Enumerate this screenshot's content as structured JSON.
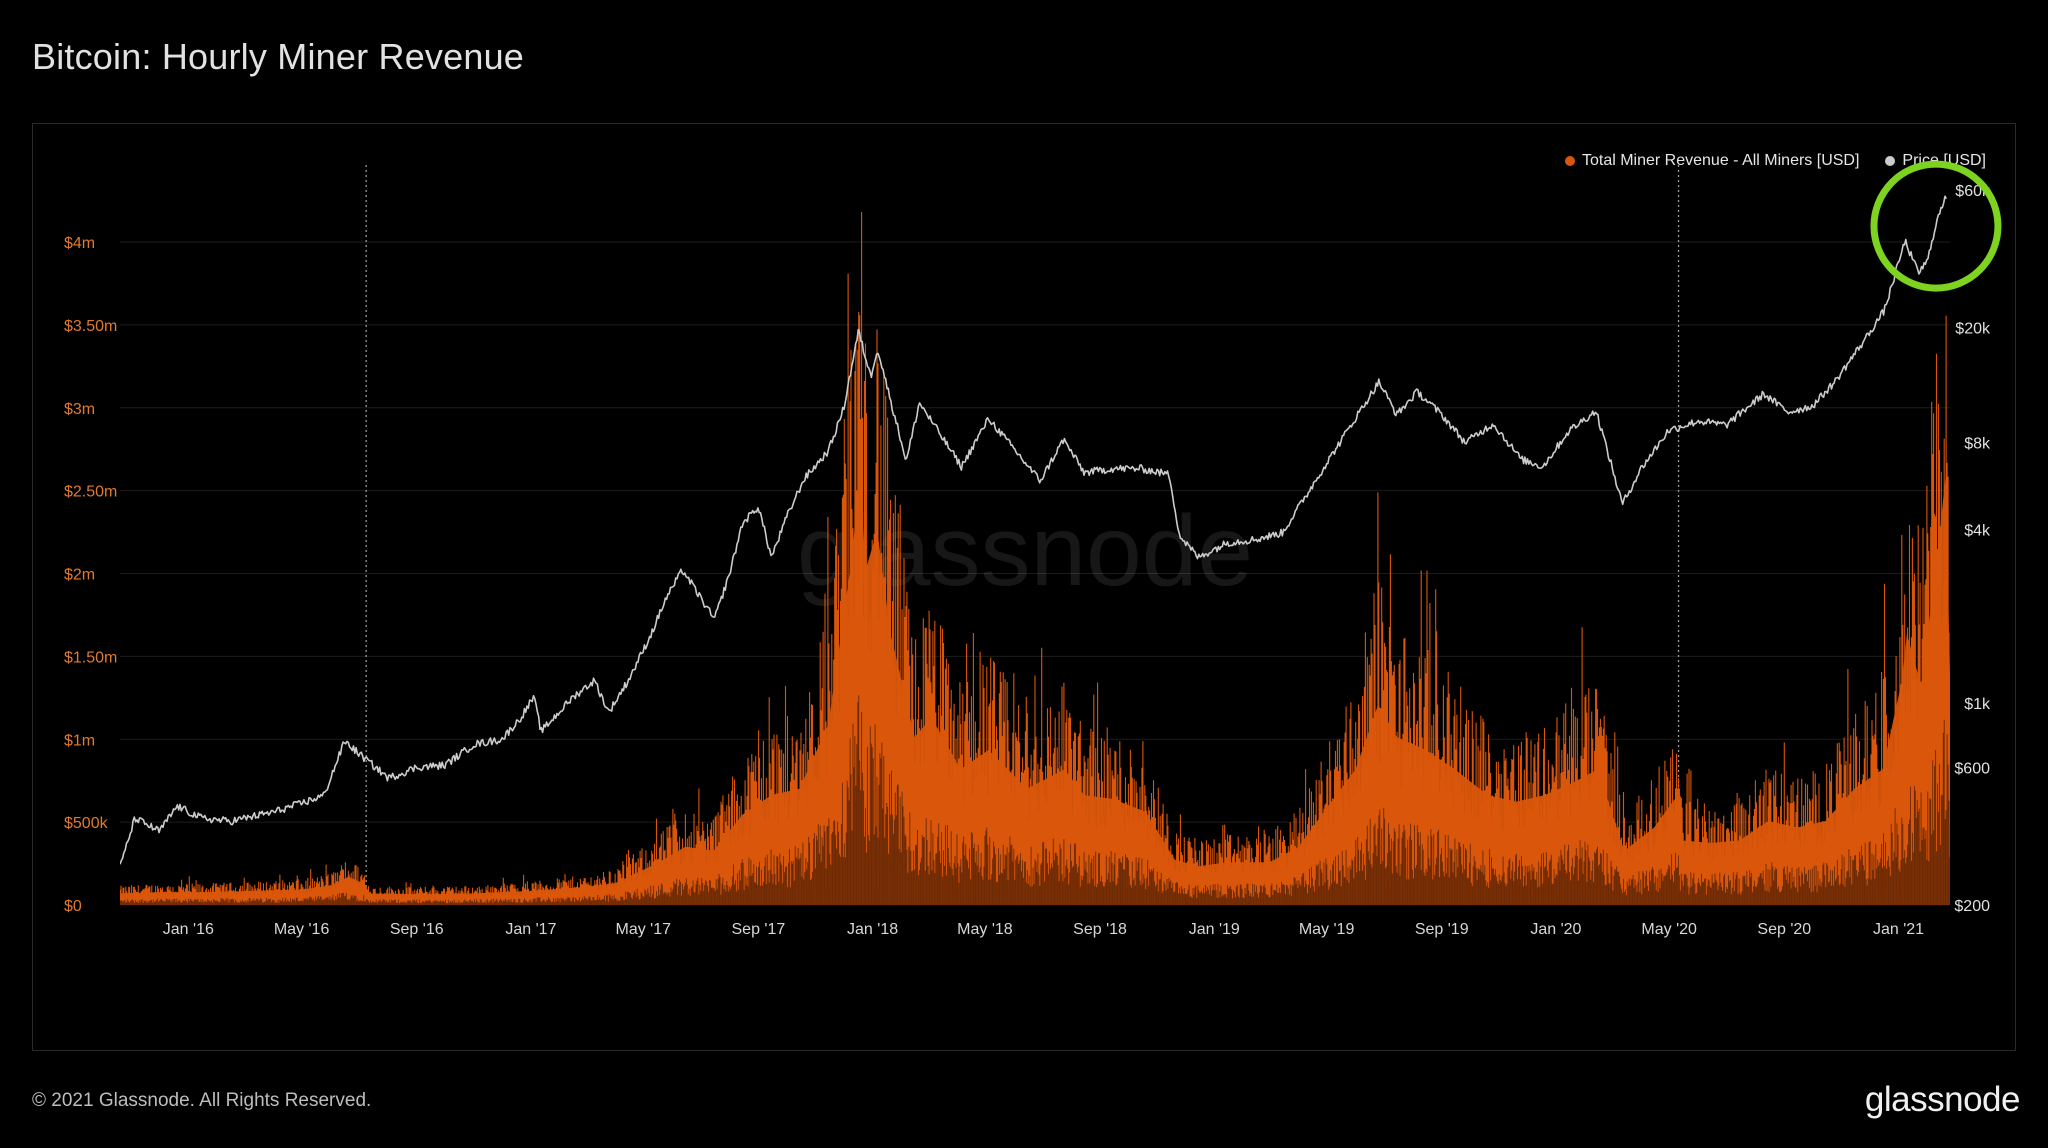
{
  "title": "Bitcoin: Hourly Miner Revenue",
  "footer": "© 2021 Glassnode. All Rights Reserved.",
  "logo": "glassnode",
  "watermark": "glassnode",
  "chart_data": {
    "type": "area",
    "title": "Bitcoin: Hourly Miner Revenue",
    "x_axis": {
      "type": "date",
      "range": [
        "2015-10-20",
        "2021-02-25"
      ],
      "tick_labels": [
        "Jan '16",
        "May '16",
        "Sep '16",
        "Jan '17",
        "May '17",
        "Sep '17",
        "Jan '18",
        "May '18",
        "Sep '18",
        "Jan '19",
        "May '19",
        "Sep '19",
        "Jan '20",
        "May '20",
        "Sep '20",
        "Jan '21"
      ],
      "tick_dates": [
        "2016-01-01",
        "2016-05-01",
        "2016-09-01",
        "2017-01-01",
        "2017-05-01",
        "2017-09-01",
        "2018-01-01",
        "2018-05-01",
        "2018-09-01",
        "2019-01-01",
        "2019-05-01",
        "2019-09-01",
        "2020-01-01",
        "2020-05-01",
        "2020-09-01",
        "2021-01-01"
      ]
    },
    "y_left": {
      "label": "",
      "scale": "linear",
      "range": [
        0,
        4500000
      ],
      "ticks": [
        0,
        500000,
        1000000,
        1500000,
        2000000,
        2500000,
        3000000,
        3500000,
        4000000
      ],
      "tick_labels": [
        "$0",
        "$500k",
        "$1m",
        "$1.50m",
        "$2m",
        "$2.50m",
        "$3m",
        "$3.50m",
        "$4m"
      ]
    },
    "y_right": {
      "label": "",
      "scale": "log",
      "range": [
        200,
        60000
      ],
      "ticks": [
        200,
        600,
        1000,
        4000,
        8000,
        20000,
        60000
      ],
      "tick_labels": [
        "$200",
        "$600",
        "$1k",
        "$4k",
        "$8k",
        "$20k",
        "$60k"
      ]
    },
    "grid": true,
    "legend_position": "top-right",
    "halving_markers": [
      "2016-07-09",
      "2020-05-11"
    ],
    "annotation": {
      "type": "circle",
      "color": "#7ed321",
      "target_date": "2021-02-10",
      "target_price": 45000
    },
    "series": [
      {
        "name": "Total Miner Revenue - All Miners [USD]",
        "color": "#d9560b",
        "axis": "left",
        "style": "area",
        "points": [
          [
            "2015-10-20",
            90000
          ],
          [
            "2015-12-01",
            100000
          ],
          [
            "2016-01-15",
            100000
          ],
          [
            "2016-03-15",
            110000
          ],
          [
            "2016-05-01",
            120000
          ],
          [
            "2016-06-01",
            150000
          ],
          [
            "2016-06-20",
            220000
          ],
          [
            "2016-07-08",
            160000
          ],
          [
            "2016-07-10",
            90000
          ],
          [
            "2016-09-01",
            85000
          ],
          [
            "2016-11-01",
            90000
          ],
          [
            "2017-01-01",
            110000
          ],
          [
            "2017-03-01",
            140000
          ],
          [
            "2017-04-01",
            170000
          ],
          [
            "2017-05-15",
            320000
          ],
          [
            "2017-06-15",
            450000
          ],
          [
            "2017-07-15",
            420000
          ],
          [
            "2017-08-15",
            700000
          ],
          [
            "2017-09-15",
            850000
          ],
          [
            "2017-10-15",
            900000
          ],
          [
            "2017-11-15",
            1400000
          ],
          [
            "2017-12-10",
            2700000
          ],
          [
            "2017-12-18",
            3300000
          ],
          [
            "2017-12-25",
            2600000
          ],
          [
            "2018-01-06",
            2900000
          ],
          [
            "2018-01-20",
            2100000
          ],
          [
            "2018-02-15",
            1300000
          ],
          [
            "2018-03-05",
            1450000
          ],
          [
            "2018-04-05",
            1050000
          ],
          [
            "2018-05-05",
            1200000
          ],
          [
            "2018-06-15",
            900000
          ],
          [
            "2018-07-25",
            1050000
          ],
          [
            "2018-08-15",
            850000
          ],
          [
            "2018-09-15",
            820000
          ],
          [
            "2018-10-20",
            720000
          ],
          [
            "2018-11-20",
            350000
          ],
          [
            "2018-12-15",
            300000
          ],
          [
            "2019-01-15",
            330000
          ],
          [
            "2019-03-01",
            330000
          ],
          [
            "2019-04-01",
            450000
          ],
          [
            "2019-05-01",
            750000
          ],
          [
            "2019-06-01",
            1050000
          ],
          [
            "2019-06-25",
            1550000
          ],
          [
            "2019-07-15",
            1300000
          ],
          [
            "2019-08-15",
            1200000
          ],
          [
            "2019-09-15",
            1050000
          ],
          [
            "2019-10-20",
            850000
          ],
          [
            "2019-11-20",
            800000
          ],
          [
            "2019-12-20",
            850000
          ],
          [
            "2020-01-20",
            950000
          ],
          [
            "2020-02-15",
            1050000
          ],
          [
            "2020-03-14",
            420000
          ],
          [
            "2020-04-15",
            600000
          ],
          [
            "2020-05-10",
            850000
          ],
          [
            "2020-05-15",
            500000
          ],
          [
            "2020-06-15",
            480000
          ],
          [
            "2020-07-15",
            500000
          ],
          [
            "2020-08-15",
            650000
          ],
          [
            "2020-09-15",
            600000
          ],
          [
            "2020-10-15",
            650000
          ],
          [
            "2020-11-15",
            900000
          ],
          [
            "2020-12-15",
            1050000
          ],
          [
            "2021-01-05",
            1750000
          ],
          [
            "2021-01-10",
            2100000
          ],
          [
            "2021-01-25",
            1700000
          ],
          [
            "2021-02-10",
            2600000
          ],
          [
            "2021-02-20",
            3300000
          ],
          [
            "2021-02-25",
            1800000
          ]
        ]
      },
      {
        "name": "Price [USD]",
        "color": "#cccccc",
        "axis": "right",
        "style": "line",
        "points": [
          [
            "2015-10-20",
            270
          ],
          [
            "2015-11-05",
            400
          ],
          [
            "2015-12-01",
            360
          ],
          [
            "2015-12-20",
            440
          ],
          [
            "2016-01-15",
            400
          ],
          [
            "2016-02-15",
            390
          ],
          [
            "2016-04-01",
            420
          ],
          [
            "2016-05-01",
            450
          ],
          [
            "2016-05-25",
            480
          ],
          [
            "2016-06-16",
            740
          ],
          [
            "2016-07-01",
            670
          ],
          [
            "2016-08-02",
            550
          ],
          [
            "2016-09-01",
            600
          ],
          [
            "2016-10-01",
            610
          ],
          [
            "2016-11-01",
            720
          ],
          [
            "2016-12-01",
            750
          ],
          [
            "2016-12-20",
            880
          ],
          [
            "2017-01-04",
            1050
          ],
          [
            "2017-01-12",
            800
          ],
          [
            "2017-02-15",
            1050
          ],
          [
            "2017-03-10",
            1200
          ],
          [
            "2017-03-25",
            930
          ],
          [
            "2017-04-15",
            1200
          ],
          [
            "2017-05-10",
            1750
          ],
          [
            "2017-05-25",
            2300
          ],
          [
            "2017-06-12",
            2900
          ],
          [
            "2017-07-16",
            1950
          ],
          [
            "2017-08-01",
            2800
          ],
          [
            "2017-08-15",
            4200
          ],
          [
            "2017-09-01",
            4800
          ],
          [
            "2017-09-15",
            3200
          ],
          [
            "2017-10-01",
            4400
          ],
          [
            "2017-10-20",
            6000
          ],
          [
            "2017-11-15",
            7500
          ],
          [
            "2017-12-01",
            10500
          ],
          [
            "2017-12-17",
            19500
          ],
          [
            "2017-12-30",
            13500
          ],
          [
            "2018-01-06",
            17000
          ],
          [
            "2018-02-06",
            6900
          ],
          [
            "2018-02-20",
            11000
          ],
          [
            "2018-04-06",
            6600
          ],
          [
            "2018-05-05",
            9700
          ],
          [
            "2018-06-29",
            5900
          ],
          [
            "2018-07-24",
            8200
          ],
          [
            "2018-08-15",
            6300
          ],
          [
            "2018-09-15",
            6500
          ],
          [
            "2018-10-15",
            6500
          ],
          [
            "2018-11-14",
            6200
          ],
          [
            "2018-11-25",
            3800
          ],
          [
            "2018-12-15",
            3200
          ],
          [
            "2019-01-15",
            3600
          ],
          [
            "2019-02-15",
            3700
          ],
          [
            "2019-03-15",
            3900
          ],
          [
            "2019-04-05",
            5000
          ],
          [
            "2019-05-15",
            8000
          ],
          [
            "2019-06-26",
            13000
          ],
          [
            "2019-07-15",
            10000
          ],
          [
            "2019-08-06",
            12000
          ],
          [
            "2019-09-01",
            10000
          ],
          [
            "2019-09-26",
            8000
          ],
          [
            "2019-10-26",
            9300
          ],
          [
            "2019-11-25",
            7000
          ],
          [
            "2019-12-18",
            6600
          ],
          [
            "2020-01-15",
            8800
          ],
          [
            "2020-02-13",
            10300
          ],
          [
            "2020-03-12",
            4900
          ],
          [
            "2020-04-01",
            6500
          ],
          [
            "2020-04-30",
            8800
          ],
          [
            "2020-06-01",
            9500
          ],
          [
            "2020-07-01",
            9200
          ],
          [
            "2020-08-10",
            11800
          ],
          [
            "2020-09-05",
            10200
          ],
          [
            "2020-10-01",
            10700
          ],
          [
            "2020-10-25",
            13000
          ],
          [
            "2020-11-25",
            18000
          ],
          [
            "2020-12-17",
            23000
          ],
          [
            "2021-01-08",
            40000
          ],
          [
            "2021-01-22",
            31000
          ],
          [
            "2021-02-01",
            34000
          ],
          [
            "2021-02-10",
            46000
          ],
          [
            "2021-02-21",
            57000
          ]
        ]
      }
    ]
  }
}
